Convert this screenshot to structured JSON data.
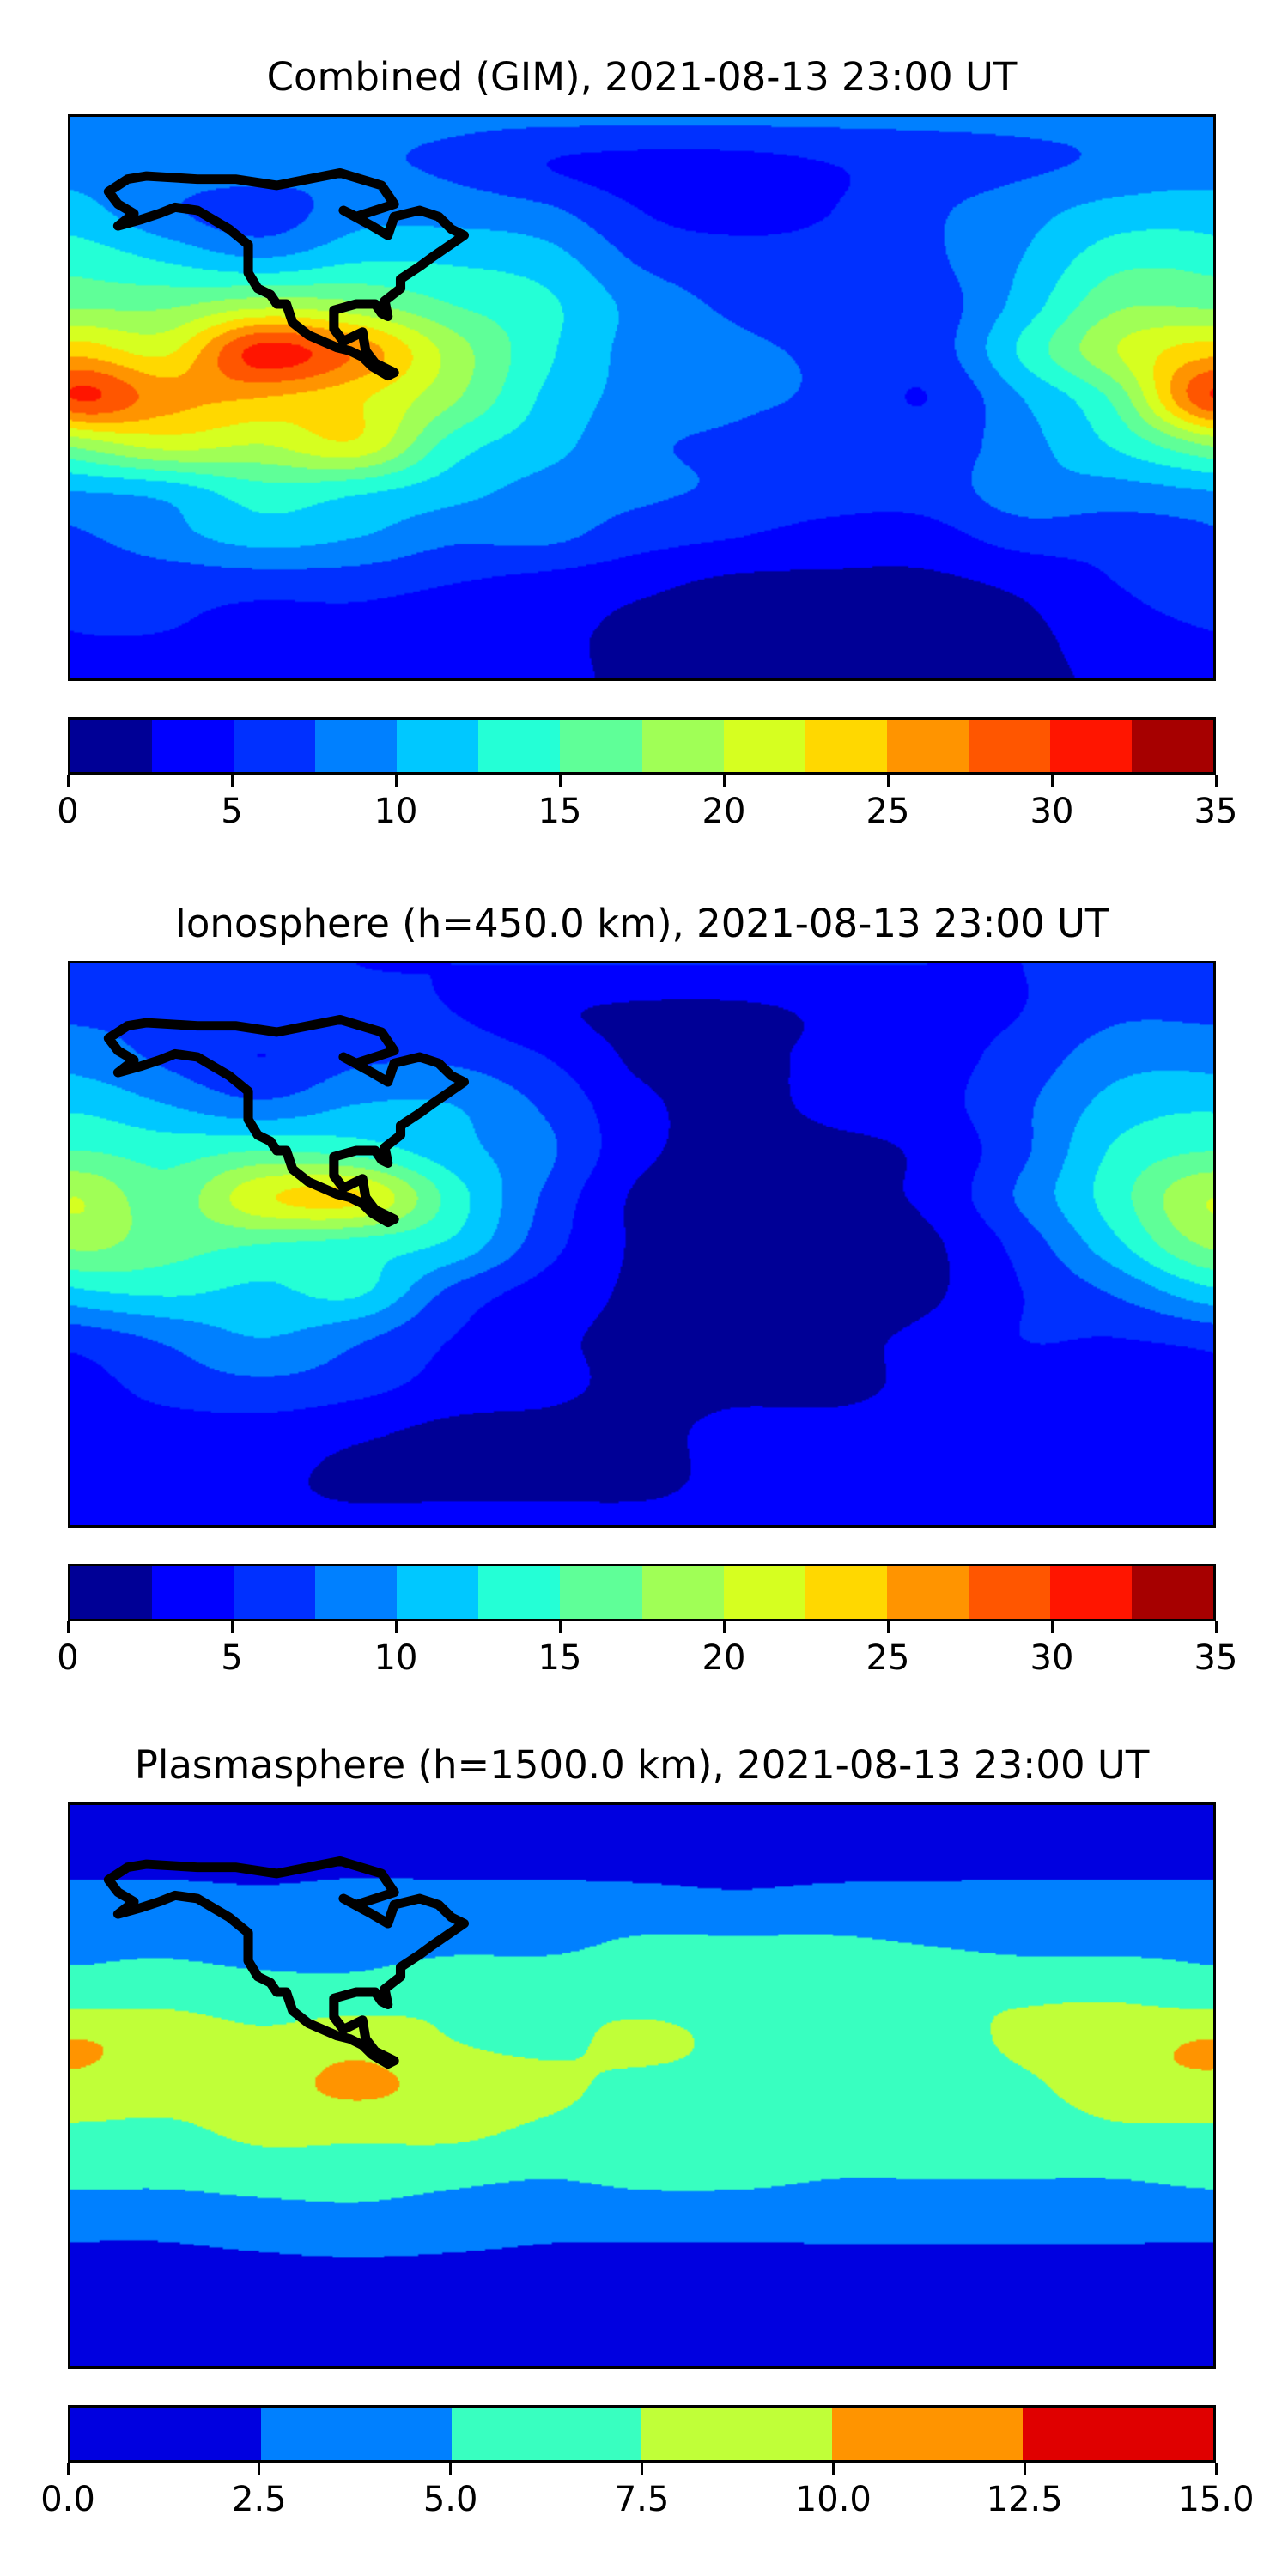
{
  "chart_data": [
    {
      "type": "heatmap",
      "title": "Combined (GIM), 2021-08-13 23:00 UT",
      "xlabel": "",
      "ylabel": "",
      "lon": [
        -180,
        -150,
        -120,
        -90,
        -60,
        -30,
        0,
        30,
        60,
        90,
        120,
        150,
        180
      ],
      "lat": [
        90,
        75,
        60,
        45,
        30,
        15,
        0,
        -15,
        -30,
        -45,
        -60,
        -75,
        -90
      ],
      "values": [
        [
          8,
          8,
          8,
          8,
          8,
          8,
          8,
          8,
          8,
          8,
          8,
          8,
          8
        ],
        [
          9,
          9,
          9,
          8,
          7,
          5,
          4,
          4,
          5,
          6,
          7,
          8,
          9
        ],
        [
          11,
          8,
          6,
          9,
          9,
          8,
          5,
          4,
          5,
          7,
          9,
          11,
          11
        ],
        [
          14,
          12,
          10,
          12,
          12,
          11,
          7,
          6,
          6,
          7,
          10,
          14,
          14
        ],
        [
          17,
          17,
          19,
          18,
          15,
          13,
          9,
          7,
          6,
          6,
          11,
          17,
          17
        ],
        [
          24,
          22,
          31,
          27,
          19,
          13,
          9,
          8,
          7,
          6,
          13,
          20,
          24
        ],
        [
          30,
          26,
          25,
          23,
          18,
          12,
          9,
          8,
          7,
          5,
          10,
          16,
          26
        ],
        [
          18,
          21,
          20,
          22,
          14,
          11,
          8,
          7,
          6,
          6,
          9,
          13,
          15
        ],
        [
          10,
          11,
          14,
          13,
          11,
          9,
          8,
          7,
          6,
          6,
          9,
          9,
          10
        ],
        [
          7,
          9,
          11,
          10,
          8,
          8,
          6,
          5,
          4,
          4,
          6,
          6,
          7
        ],
        [
          6,
          6,
          6,
          6,
          5,
          4,
          3,
          2,
          2,
          2,
          3,
          5,
          6
        ],
        [
          5,
          5,
          4,
          4,
          3,
          3,
          2,
          2,
          2,
          2,
          2,
          4,
          5
        ],
        [
          4,
          4,
          4,
          4,
          3,
          3,
          2,
          2,
          2,
          2,
          2,
          3,
          4
        ]
      ],
      "colorbar": {
        "vmin": 0,
        "vmax": 35,
        "levels": [
          0,
          2.5,
          5,
          7.5,
          10,
          12.5,
          15,
          17.5,
          20,
          22.5,
          25,
          27.5,
          30,
          32.5,
          35
        ],
        "colors": [
          "#000096",
          "#0000ff",
          "#0030ff",
          "#0080ff",
          "#00c8ff",
          "#24ffd6",
          "#5fff98",
          "#a0ff56",
          "#d6ff20",
          "#ffd800",
          "#ff9400",
          "#ff5600",
          "#ff1500",
          "#a60000"
        ],
        "ticks": [
          0,
          5,
          10,
          15,
          20,
          25,
          30,
          35
        ],
        "tick_labels": [
          "0",
          "5",
          "10",
          "15",
          "20",
          "25",
          "30",
          "35"
        ]
      }
    },
    {
      "type": "heatmap",
      "title": "Ionosphere  (h=450.0 km), 2021-08-13 23:00 UT",
      "xlabel": "",
      "ylabel": "",
      "lon": [
        -180,
        -150,
        -120,
        -90,
        -60,
        -30,
        0,
        30,
        60,
        90,
        120,
        150,
        180
      ],
      "lat": [
        90,
        75,
        60,
        45,
        30,
        15,
        0,
        -15,
        -30,
        -45,
        -60,
        -75,
        -90
      ],
      "values": [
        [
          6,
          6,
          6,
          5,
          5,
          5,
          5,
          5,
          5,
          5,
          5,
          6,
          6
        ],
        [
          7,
          7,
          7,
          6,
          5,
          3,
          2,
          2,
          3,
          4,
          5,
          7,
          7
        ],
        [
          9,
          7,
          5,
          7,
          7,
          5,
          2,
          2,
          3,
          4,
          6,
          9,
          9
        ],
        [
          12,
          10,
          8,
          10,
          10,
          7,
          3,
          2,
          3,
          4,
          7,
          11,
          12
        ],
        [
          15,
          14,
          15,
          14,
          11,
          8,
          3,
          2,
          2,
          3,
          7,
          13,
          15
        ],
        [
          20,
          16,
          22,
          23,
          14,
          7,
          2,
          2,
          2,
          3,
          8,
          14,
          18
        ],
        [
          18,
          16,
          15,
          14,
          12,
          6,
          2,
          1,
          1,
          2,
          6,
          12,
          17
        ],
        [
          12,
          13,
          12,
          13,
          7,
          4,
          2,
          1,
          1,
          2,
          5,
          8,
          11
        ],
        [
          6,
          8,
          10,
          8,
          5,
          3,
          2,
          2,
          2,
          3,
          5,
          5,
          6
        ],
        [
          4,
          6,
          7,
          6,
          4,
          3,
          2,
          2,
          2,
          3,
          4,
          4,
          4
        ],
        [
          4,
          4,
          4,
          3,
          2,
          2,
          2,
          3,
          3,
          3,
          3,
          3,
          4
        ],
        [
          3,
          3,
          3,
          2,
          2,
          2,
          2,
          3,
          3,
          3,
          3,
          3,
          3
        ],
        [
          3,
          3,
          3,
          3,
          3,
          3,
          3,
          3,
          3,
          3,
          3,
          3,
          3
        ]
      ],
      "colorbar": {
        "vmin": 0,
        "vmax": 35,
        "levels": [
          0,
          2.5,
          5,
          7.5,
          10,
          12.5,
          15,
          17.5,
          20,
          22.5,
          25,
          27.5,
          30,
          32.5,
          35
        ],
        "colors": [
          "#000096",
          "#0000ff",
          "#0030ff",
          "#0080ff",
          "#00c8ff",
          "#24ffd6",
          "#5fff98",
          "#a0ff56",
          "#d6ff20",
          "#ffd800",
          "#ff9400",
          "#ff5600",
          "#ff1500",
          "#a60000"
        ],
        "ticks": [
          0,
          5,
          10,
          15,
          20,
          25,
          30,
          35
        ],
        "tick_labels": [
          "0",
          "5",
          "10",
          "15",
          "20",
          "25",
          "30",
          "35"
        ]
      }
    },
    {
      "type": "heatmap",
      "title": "Plasmasphere (h=1500.0 km), 2021-08-13 23:00 UT",
      "xlabel": "",
      "ylabel": "",
      "lon": [
        -180,
        -150,
        -120,
        -90,
        -60,
        -30,
        0,
        30,
        60,
        90,
        120,
        150,
        180
      ],
      "lat": [
        90,
        75,
        60,
        45,
        30,
        15,
        0,
        -15,
        -30,
        -45,
        -60,
        -75,
        -90
      ],
      "values": [
        [
          2,
          2,
          2,
          2,
          2,
          2,
          2,
          2,
          2,
          2,
          2,
          2,
          2
        ],
        [
          2,
          2,
          2,
          2,
          2,
          2,
          2,
          2,
          2,
          2,
          2,
          2,
          2
        ],
        [
          3,
          3,
          2.8,
          3,
          3,
          3,
          3,
          2.8,
          3,
          3,
          3,
          3,
          3
        ],
        [
          4.5,
          4.5,
          4,
          4,
          4.5,
          4.5,
          5.5,
          5.5,
          5.5,
          5,
          4.5,
          4.5,
          4.5
        ],
        [
          6,
          6.5,
          6,
          6,
          7,
          7,
          6.5,
          6.5,
          6.5,
          7,
          7,
          7,
          6
        ],
        [
          10,
          9,
          8,
          9,
          7.5,
          7,
          8,
          7,
          7,
          6.5,
          8,
          9,
          10
        ],
        [
          9.5,
          8.5,
          9,
          10.5,
          9,
          8,
          7,
          7,
          6.5,
          6,
          7,
          9,
          10.5
        ],
        [
          7,
          7,
          8,
          8,
          8,
          7,
          6.5,
          6.5,
          6,
          6,
          6,
          7,
          7
        ],
        [
          5.5,
          5.5,
          6,
          6,
          5.5,
          5,
          5.5,
          5.5,
          5,
          5,
          5,
          5,
          5.5
        ],
        [
          3,
          3,
          3.5,
          4,
          3.5,
          3,
          3,
          3,
          3,
          3,
          3,
          3,
          3
        ],
        [
          2,
          2,
          2,
          2,
          2,
          2,
          2,
          2,
          2,
          2,
          2,
          2,
          2
        ],
        [
          2,
          2,
          2,
          2,
          2,
          2,
          2,
          2,
          2,
          2,
          2,
          2,
          2
        ],
        [
          2,
          2,
          2,
          2,
          2,
          2,
          2,
          2,
          2,
          2,
          2,
          2,
          2
        ]
      ],
      "colorbar": {
        "vmin": 0,
        "vmax": 15,
        "levels": [
          0,
          2.5,
          5,
          7.5,
          10,
          12.5,
          15
        ],
        "colors": [
          "#0000e0",
          "#0080ff",
          "#38ffc0",
          "#c0ff38",
          "#ff9400",
          "#e00000"
        ],
        "ticks": [
          0,
          2.5,
          5,
          7.5,
          10,
          12.5,
          15
        ],
        "tick_labels": [
          "0.0",
          "2.5",
          "5.0",
          "7.5",
          "10.0",
          "12.5",
          "15.0"
        ]
      }
    }
  ]
}
